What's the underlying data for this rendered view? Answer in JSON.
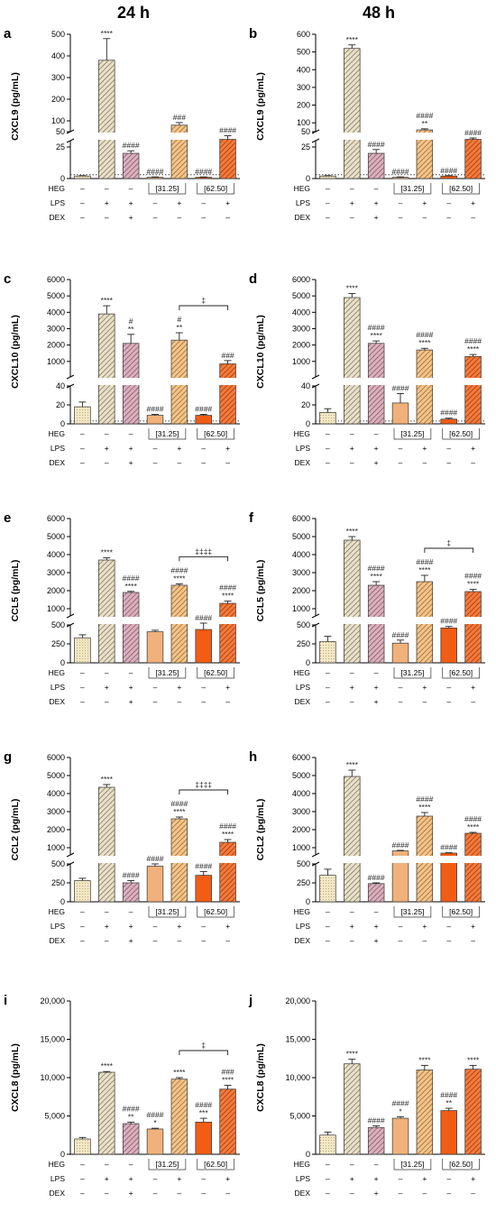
{
  "header": {
    "left": "24 h",
    "right": "48 h"
  },
  "treatments": {
    "rows": [
      "HEG",
      "LPS",
      "DEX"
    ],
    "dash": "–",
    "plus": "+",
    "conc_low": "[31.25]",
    "conc_high": "[62.50]"
  },
  "colors": {
    "ctrl": "#f3e7c3",
    "lps": "#c5b998",
    "dex": "#b77f91",
    "heg_low": "#f0b27a",
    "heg_low_lps": "#e39a48",
    "heg_high": "#f25c14",
    "heg_high_lps": "#e8591a"
  },
  "chart_data": [
    {
      "id": "a",
      "type": "bar",
      "column": "24 h",
      "ylabel": "CXCL9 (pg/mL)",
      "categories": [
        "ctrl",
        "LPS",
        "LPS+DEX",
        "HEG31.25",
        "HEG31.25+LPS",
        "HEG62.50",
        "HEG62.50+LPS"
      ],
      "values": [
        2,
        380,
        20,
        1,
        80,
        1,
        33
      ],
      "errors": [
        0.3,
        100,
        2,
        0.3,
        12,
        0.3,
        8
      ],
      "break": {
        "lower": [
          0,
          30
        ],
        "upper": [
          50,
          500
        ],
        "lower_ticks": [
          "0",
          "25"
        ],
        "upper_ticks": [
          "50",
          "100",
          "200",
          "300",
          "400",
          "500"
        ]
      },
      "labels": [
        [],
        [
          "****"
        ],
        [
          "####"
        ],
        [
          "####"
        ],
        [
          "###"
        ],
        [
          "####"
        ],
        [
          "####"
        ]
      ],
      "dotted_baseline": true
    },
    {
      "id": "b",
      "type": "bar",
      "column": "48 h",
      "ylabel": "CXCL9 (pg/mL)",
      "categories": [
        "ctrl",
        "LPS",
        "LPS+DEX",
        "HEG31.25",
        "HEG31.25+LPS",
        "HEG62.50",
        "HEG62.50+LPS"
      ],
      "values": [
        2,
        520,
        20,
        1,
        60,
        2,
        33
      ],
      "errors": [
        0.3,
        20,
        3,
        0.3,
        6,
        0.3,
        3
      ],
      "break": {
        "lower": [
          0,
          30
        ],
        "upper": [
          50,
          600
        ],
        "lower_ticks": [
          "0",
          "25"
        ],
        "upper_ticks": [
          "50",
          "100",
          "200",
          "300",
          "400",
          "500",
          "600"
        ]
      },
      "labels": [
        [],
        [
          "****"
        ],
        [
          "####"
        ],
        [
          "####"
        ],
        [
          "####",
          "**"
        ],
        [
          "####"
        ],
        [
          "####"
        ]
      ],
      "dotted_baseline": true
    },
    {
      "id": "c",
      "type": "bar",
      "column": "24 h",
      "ylabel": "CXCL10 (pg/mL)",
      "categories": [
        "ctrl",
        "LPS",
        "LPS+DEX",
        "HEG31.25",
        "HEG31.25+LPS",
        "HEG62.50",
        "HEG62.50+LPS"
      ],
      "values": [
        18,
        3900,
        2100,
        9,
        2300,
        9,
        850
      ],
      "errors": [
        5,
        500,
        550,
        1,
        450,
        1,
        200
      ],
      "break": {
        "lower": [
          0,
          40
        ],
        "upper": [
          50,
          6000
        ],
        "lower_ticks": [
          "0",
          "20",
          "40"
        ],
        "upper_ticks": [
          "1000",
          "2000",
          "3000",
          "4000",
          "5000",
          "6000"
        ]
      },
      "labels": [
        [],
        [
          "****"
        ],
        [
          "#",
          "**"
        ],
        [
          "####"
        ],
        [
          "#",
          "**"
        ],
        [
          "####"
        ],
        [
          "###"
        ]
      ],
      "bracket": {
        "from": 4,
        "to": 6,
        "label": "‡"
      },
      "dotted_baseline": true
    },
    {
      "id": "d",
      "type": "bar",
      "column": "48 h",
      "ylabel": "CXCL10 (pg/mL)",
      "categories": [
        "ctrl",
        "LPS",
        "LPS+DEX",
        "HEG31.25",
        "HEG31.25+LPS",
        "HEG62.50",
        "HEG62.50+LPS"
      ],
      "values": [
        12,
        4900,
        2100,
        22,
        1700,
        5,
        1300
      ],
      "errors": [
        4,
        250,
        150,
        10,
        100,
        1,
        120
      ],
      "break": {
        "lower": [
          0,
          40
        ],
        "upper": [
          50,
          6000
        ],
        "lower_ticks": [
          "0",
          "20",
          "40"
        ],
        "upper_ticks": [
          "1000",
          "2000",
          "3000",
          "4000",
          "5000",
          "6000"
        ]
      },
      "labels": [
        [],
        [
          "****"
        ],
        [
          "####",
          "****"
        ],
        [
          "####"
        ],
        [
          "####",
          "****"
        ],
        [
          "####"
        ],
        [
          "####",
          "****"
        ]
      ],
      "dotted_baseline": true
    },
    {
      "id": "e",
      "type": "bar",
      "column": "24 h",
      "ylabel": "CCL5 (pg/mL)",
      "categories": [
        "ctrl",
        "LPS",
        "LPS+DEX",
        "HEG31.25",
        "HEG31.25+LPS",
        "HEG62.50",
        "HEG62.50+LPS"
      ],
      "values": [
        330,
        3700,
        1900,
        410,
        2300,
        440,
        1300
      ],
      "errors": [
        40,
        120,
        60,
        20,
        80,
        80,
        120
      ],
      "break": {
        "lower": [
          0,
          500
        ],
        "upper": [
          600,
          6000
        ],
        "lower_ticks": [
          "0",
          "250",
          "500"
        ],
        "upper_ticks": [
          "1000",
          "2000",
          "3000",
          "4000",
          "5000",
          "6000"
        ]
      },
      "labels": [
        [],
        [
          "****"
        ],
        [
          "####",
          "****"
        ],
        [],
        [
          "####",
          "****"
        ],
        [
          "####"
        ],
        [
          "####",
          "****"
        ]
      ],
      "bracket": {
        "from": 4,
        "to": 6,
        "label": "‡‡‡‡"
      }
    },
    {
      "id": "f",
      "type": "bar",
      "column": "48 h",
      "ylabel": "CCL5 (pg/mL)",
      "categories": [
        "ctrl",
        "LPS",
        "LPS+DEX",
        "HEG31.25",
        "HEG31.25+LPS",
        "HEG62.50",
        "HEG62.50+LPS"
      ],
      "values": [
        280,
        4800,
        2300,
        260,
        2500,
        460,
        1950
      ],
      "errors": [
        70,
        200,
        200,
        40,
        350,
        20,
        120
      ],
      "break": {
        "lower": [
          0,
          500
        ],
        "upper": [
          600,
          6000
        ],
        "lower_ticks": [
          "0",
          "250",
          "500"
        ],
        "upper_ticks": [
          "1000",
          "2000",
          "3000",
          "4000",
          "5000",
          "6000"
        ]
      },
      "labels": [
        [],
        [
          "****"
        ],
        [
          "####",
          "****"
        ],
        [
          "####"
        ],
        [
          "####",
          "****"
        ],
        [
          "####"
        ],
        [
          "####",
          "****"
        ]
      ],
      "bracket": {
        "from": 4,
        "to": 6,
        "label": "‡"
      }
    },
    {
      "id": "g",
      "type": "bar",
      "column": "24 h",
      "ylabel": "CCL2 (pg/mL)",
      "categories": [
        "ctrl",
        "LPS",
        "LPS+DEX",
        "HEG31.25",
        "HEG31.25+LPS",
        "HEG62.50",
        "HEG62.50+LPS"
      ],
      "values": [
        280,
        4350,
        250,
        470,
        2600,
        350,
        1300
      ],
      "errors": [
        30,
        150,
        30,
        30,
        100,
        50,
        150
      ],
      "break": {
        "lower": [
          0,
          500
        ],
        "upper": [
          600,
          6000
        ],
        "lower_ticks": [
          "0",
          "250",
          "500"
        ],
        "upper_ticks": [
          "1000",
          "2000",
          "3000",
          "4000",
          "5000",
          "6000"
        ]
      },
      "labels": [
        [],
        [
          "****"
        ],
        [
          "####"
        ],
        [
          "####"
        ],
        [
          "####",
          "****"
        ],
        [
          "####"
        ],
        [
          "####",
          "****"
        ]
      ],
      "bracket": {
        "from": 4,
        "to": 6,
        "label": "‡‡‡‡"
      }
    },
    {
      "id": "h",
      "type": "bar",
      "column": "48 h",
      "ylabel": "CCL2 (pg/mL)",
      "categories": [
        "ctrl",
        "LPS",
        "LPS+DEX",
        "HEG31.25",
        "HEG31.25+LPS",
        "HEG62.50",
        "HEG62.50+LPS"
      ],
      "values": [
        350,
        4950,
        240,
        820,
        2750,
        700,
        1800
      ],
      "errors": [
        80,
        350,
        10,
        30,
        200,
        20,
        50
      ],
      "break": {
        "lower": [
          0,
          500
        ],
        "upper": [
          600,
          6000
        ],
        "lower_ticks": [
          "0",
          "250",
          "500"
        ],
        "upper_ticks": [
          "1000",
          "2000",
          "3000",
          "4000",
          "5000",
          "6000"
        ]
      },
      "labels": [
        [],
        [
          "****"
        ],
        [
          "####"
        ],
        [
          "####"
        ],
        [
          "####",
          "****"
        ],
        [
          "####"
        ],
        [
          "####",
          "****"
        ]
      ]
    },
    {
      "id": "i",
      "type": "bar",
      "column": "24 h",
      "ylabel": "CXCL8 (pg/mL)",
      "categories": [
        "ctrl",
        "LPS",
        "LPS+DEX",
        "HEG31.25",
        "HEG31.25+LPS",
        "HEG62.50",
        "HEG62.50+LPS"
      ],
      "values": [
        2000,
        10700,
        4000,
        3300,
        9800,
        4200,
        8500
      ],
      "errors": [
        200,
        100,
        200,
        100,
        200,
        500,
        500
      ],
      "ylim": [
        0,
        20000
      ],
      "ticks": [
        "0",
        "5,000",
        "10,000",
        "15,000",
        "20,000"
      ],
      "labels": [
        [],
        [
          "****"
        ],
        [
          "####",
          "**"
        ],
        [
          "####",
          "*"
        ],
        [
          "****"
        ],
        [
          "####",
          "***"
        ],
        [
          "###",
          "****"
        ]
      ],
      "bracket": {
        "from": 4,
        "to": 6,
        "label": "‡"
      }
    },
    {
      "id": "j",
      "type": "bar",
      "column": "48 h",
      "ylabel": "CXCL8 (pg/mL)",
      "categories": [
        "ctrl",
        "LPS",
        "LPS+DEX",
        "HEG31.25",
        "HEG31.25+LPS",
        "HEG62.50",
        "HEG62.50+LPS"
      ],
      "values": [
        2500,
        11800,
        3500,
        4700,
        11000,
        5700,
        11100
      ],
      "errors": [
        400,
        600,
        200,
        200,
        600,
        300,
        500
      ],
      "ylim": [
        0,
        20000
      ],
      "ticks": [
        "0",
        "5,000",
        "10,000",
        "15,000",
        "20,000"
      ],
      "labels": [
        [],
        [
          "****"
        ],
        [
          "####"
        ],
        [
          "####",
          "*"
        ],
        [
          "****"
        ],
        [
          "####",
          "**"
        ],
        [
          "****"
        ]
      ]
    }
  ]
}
